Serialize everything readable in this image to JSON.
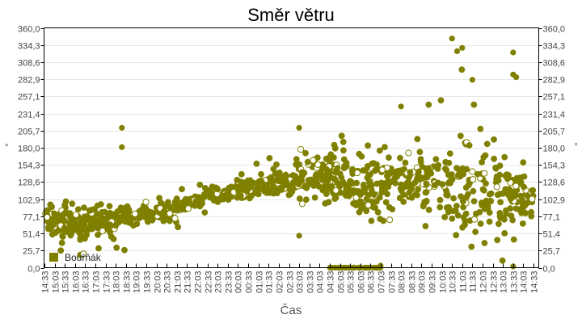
{
  "chart_data": {
    "type": "scatter",
    "title": "Směr větru",
    "xlabel": "Čas",
    "ylabel": "°",
    "ylabel_right": "°",
    "ylim": [
      0,
      360
    ],
    "y_ticks": [
      "0,0",
      "25,7",
      "51,4",
      "77,1",
      "102,9",
      "128,6",
      "154,3",
      "180,0",
      "205,7",
      "231,4",
      "257,1",
      "282,9",
      "308,6",
      "334,3",
      "360,0"
    ],
    "x_ticks": [
      "14:33",
      "15:03",
      "15:33",
      "16:03",
      "16:33",
      "17:03",
      "17:33",
      "18:03",
      "18:33",
      "19:03",
      "19:33",
      "20:03",
      "20:33",
      "21:03",
      "21:33",
      "22:03",
      "22:33",
      "23:03",
      "23:33",
      "00:03",
      "00:33",
      "01:03",
      "01:33",
      "02:03",
      "02:33",
      "03:03",
      "03:33",
      "04:03",
      "04:33",
      "05:03",
      "05:33",
      "06:03",
      "06:33",
      "07:03",
      "07:33",
      "08:03",
      "08:33",
      "09:03",
      "09:33",
      "10:03",
      "10:33",
      "11:03",
      "11:33",
      "12:03",
      "12:33",
      "13:03",
      "13:33",
      "14:03",
      "14:33"
    ],
    "grid": true,
    "legend_position": "inside-bottom-left",
    "series": [
      {
        "name": "Bouřňák",
        "color": "#808000",
        "trend": [
          {
            "time": "14:33",
            "mean": 70,
            "spread": 22
          },
          {
            "time": "16:03",
            "mean": 68,
            "spread": 25
          },
          {
            "time": "17:33",
            "mean": 66,
            "spread": 22
          },
          {
            "time": "19:03",
            "mean": 78,
            "spread": 14
          },
          {
            "time": "20:33",
            "mean": 85,
            "spread": 12
          },
          {
            "time": "22:03",
            "mean": 100,
            "spread": 12
          },
          {
            "time": "23:33",
            "mean": 115,
            "spread": 12
          },
          {
            "time": "01:03",
            "mean": 122,
            "spread": 12
          },
          {
            "time": "02:33",
            "mean": 130,
            "spread": 18
          },
          {
            "time": "03:33",
            "mean": 135,
            "spread": 25
          },
          {
            "time": "04:33",
            "mean": 140,
            "spread": 45
          },
          {
            "time": "06:03",
            "mean": 120,
            "spread": 50
          },
          {
            "time": "07:33",
            "mean": 128,
            "spread": 35
          },
          {
            "time": "09:03",
            "mean": 135,
            "spread": 28
          },
          {
            "time": "10:33",
            "mean": 120,
            "spread": 50
          },
          {
            "time": "12:03",
            "mean": 110,
            "spread": 60
          },
          {
            "time": "13:33",
            "mean": 105,
            "spread": 55
          },
          {
            "time": "14:33",
            "mean": 105,
            "spread": 40
          }
        ],
        "notable_points": [
          {
            "time": "18:21",
            "value": 210
          },
          {
            "time": "18:21",
            "value": 181
          },
          {
            "time": "03:03",
            "value": 210
          },
          {
            "time": "03:03",
            "value": 48
          },
          {
            "time": "08:03",
            "value": 242
          },
          {
            "time": "10:33",
            "value": 344
          },
          {
            "time": "10:48",
            "value": 325
          },
          {
            "time": "11:03",
            "value": 330
          },
          {
            "time": "13:33",
            "value": 323
          },
          {
            "time": "13:33",
            "value": 290
          },
          {
            "time": "11:33",
            "value": 282
          },
          {
            "time": "13:42",
            "value": 286
          },
          {
            "time": "05:03",
            "value": 0
          },
          {
            "time": "05:33",
            "value": 0
          },
          {
            "time": "06:03",
            "value": 0
          },
          {
            "time": "06:33",
            "value": 0
          },
          {
            "time": "07:03",
            "value": 3
          },
          {
            "time": "13:33",
            "value": 2
          }
        ]
      }
    ]
  }
}
